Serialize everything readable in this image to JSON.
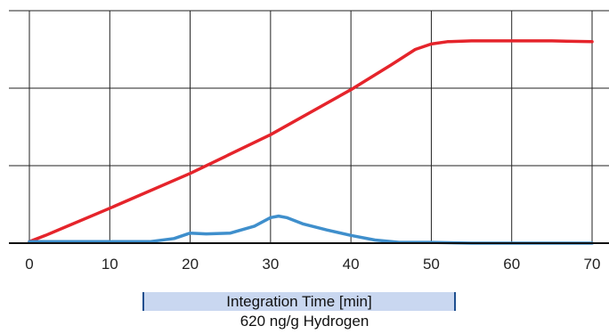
{
  "chart_data": {
    "type": "line",
    "xlabel": "Integration Time [min]",
    "subtitle": "620 ng/g Hydrogen",
    "ylabel": "",
    "xlim": [
      0,
      70
    ],
    "ylim": [
      0,
      3
    ],
    "x_ticks": [
      0,
      10,
      20,
      30,
      40,
      50,
      60,
      70
    ],
    "y_gridlines": [
      1,
      2,
      3
    ],
    "y_ticks_labeled": false,
    "grid": true,
    "series": [
      {
        "color": "#e5242b",
        "x": [
          0,
          2,
          10,
          20,
          30,
          40,
          45,
          48,
          50,
          52,
          55,
          60,
          65,
          70
        ],
        "y": [
          0.02,
          0.1,
          0.45,
          0.9,
          1.4,
          1.98,
          2.3,
          2.5,
          2.57,
          2.6,
          2.61,
          2.61,
          2.61,
          2.6
        ]
      },
      {
        "color": "#3f8fcc",
        "x": [
          0,
          5,
          10,
          15,
          18,
          20,
          22,
          25,
          28,
          30,
          31,
          32,
          34,
          37,
          40,
          43,
          46,
          50,
          55,
          60,
          70
        ],
        "y": [
          0.02,
          0.02,
          0.02,
          0.02,
          0.06,
          0.13,
          0.12,
          0.13,
          0.22,
          0.33,
          0.35,
          0.33,
          0.25,
          0.17,
          0.1,
          0.04,
          0.01,
          0.01,
          0.0,
          0.0,
          0.0
        ]
      }
    ]
  }
}
